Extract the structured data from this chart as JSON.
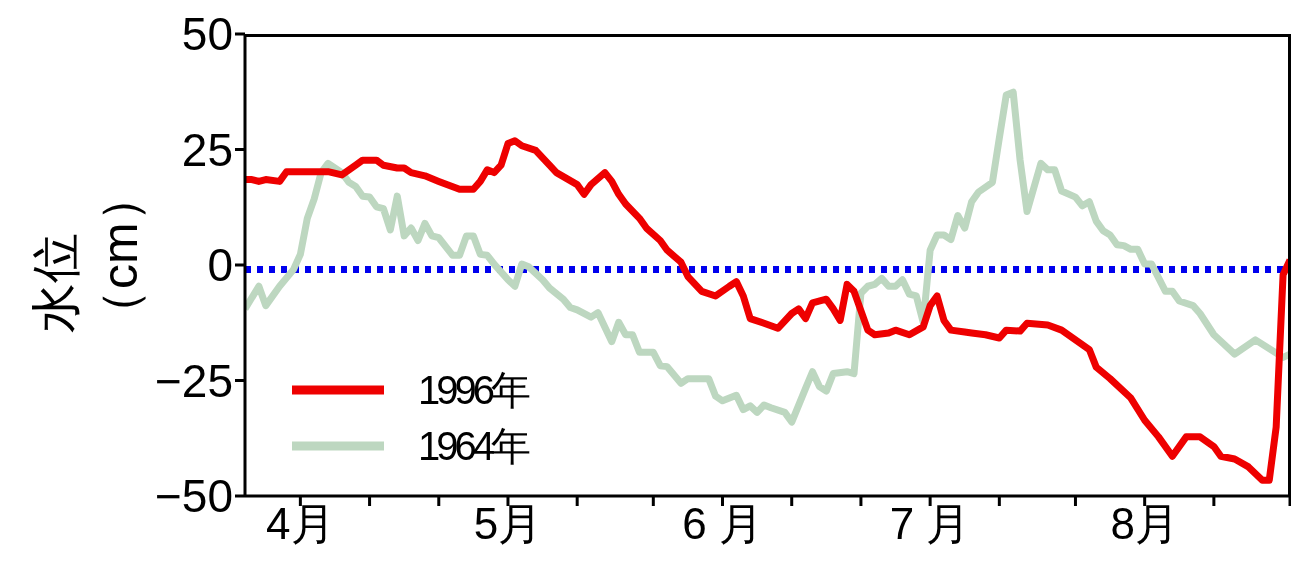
{
  "chart_data": {
    "type": "line",
    "ylabel": "水位（cm）",
    "xlim": [
      "--04-03",
      "--09-01"
    ],
    "xticks": [
      {
        "value": "--04-11",
        "label": "4月"
      },
      {
        "value": "--04-21",
        "label": null
      },
      {
        "value": "--05-01",
        "label": null
      },
      {
        "value": "--05-11",
        "label": "5月"
      },
      {
        "value": "--05-21",
        "label": null
      },
      {
        "value": "--06-01",
        "label": null
      },
      {
        "value": "--06-11",
        "label": "6 月"
      },
      {
        "value": "--06-21",
        "label": null
      },
      {
        "value": "--07-01",
        "label": null
      },
      {
        "value": "--07-11",
        "label": "7 月"
      },
      {
        "value": "--07-21",
        "label": null
      },
      {
        "value": "--08-01",
        "label": null
      },
      {
        "value": "--08-11",
        "label": "8月"
      },
      {
        "value": "--08-21",
        "label": null
      },
      {
        "value": "--09-01",
        "label": null
      }
    ],
    "ylim": [
      -50,
      50
    ],
    "yticks": [
      {
        "value": -50,
        "label": "−50"
      },
      {
        "value": -25,
        "label": "−25"
      },
      0,
      25,
      50
    ],
    "grid": false,
    "legend": "bottom left",
    "marker": "none",
    "ref_lines": [
      {
        "axis": "y",
        "value": -1,
        "color": "#0000ee",
        "line_style": "dotted"
      }
    ],
    "series": [
      {
        "name": "1996年",
        "color": "#ee0000",
        "line_style": "solid",
        "x": [
          "--04-03",
          "--04-04",
          "--04-05",
          "--04-06",
          "--04-08",
          "--04-09",
          "--04-12",
          "--04-15",
          "--04-17",
          "--04-19",
          "--04-20",
          "--04-22",
          "--04-23",
          "--04-25",
          "--04-26",
          "--04-27",
          "--04-29",
          "--05-01",
          "--05-04",
          "--05-05",
          "--05-06",
          "--05-07",
          "--05-08",
          "--05-09",
          "--05-10",
          "--05-11",
          "--05-12",
          "--05-13",
          "--05-15",
          "--05-17",
          "--05-18",
          "--05-21",
          "--05-22",
          "--05-23",
          "--05-25",
          "--05-26",
          "--05-27",
          "--05-28",
          "--05-30",
          "--05-31",
          "--06-02",
          "--06-03",
          "--06-05",
          "--06-06",
          "--06-08",
          "--06-10",
          "--06-12",
          "--06-13",
          "--06-14",
          "--06-15",
          "--06-17",
          "--06-19",
          "--06-21",
          "--06-22",
          "--06-23",
          "--06-24",
          "--06-26",
          "--06-27",
          "--06-28",
          "--06-29",
          "--06-30",
          "--07-02",
          "--07-03",
          "--07-05",
          "--07-06",
          "--07-08",
          "--07-10",
          "--07-11",
          "--07-12",
          "--07-13",
          "--07-14",
          "--07-16",
          "--07-17",
          "--07-19",
          "--07-21",
          "--07-22",
          "--07-24",
          "--07-25",
          "--07-28",
          "--07-30",
          "--08-01",
          "--08-03",
          "--08-04",
          "--08-06",
          "--08-09",
          "--08-11",
          "--08-13",
          "--08-15",
          "--08-17",
          "--08-19",
          "--08-21",
          "--08-22",
          "--08-24",
          "--08-26",
          "--08-28",
          "--08-29",
          "--08-30",
          "--08-31",
          "--09-01"
        ],
        "values": [
          18.5,
          18.5,
          18.1,
          18.5,
          18.1,
          20.2,
          20.2,
          20.2,
          19.5,
          21.6,
          22.7,
          22.7,
          21.6,
          21,
          21,
          20,
          19.3,
          18.1,
          16.4,
          16.4,
          16.4,
          18.1,
          20.6,
          20,
          21.6,
          26.3,
          26.9,
          25.8,
          24.8,
          21.6,
          20,
          17.4,
          15.3,
          17.4,
          20,
          18.1,
          15.3,
          13.2,
          10.1,
          8,
          5.3,
          3.2,
          0.6,
          -2.5,
          -5.7,
          -6.7,
          -4.6,
          -3.6,
          -6.7,
          -11.6,
          -12.6,
          -13.7,
          -10.5,
          -9.5,
          -11.6,
          -8.2,
          -7.4,
          -9.5,
          -12,
          -4.2,
          -5.7,
          -14.1,
          -15.1,
          -14.7,
          -14.1,
          -15.1,
          -13.4,
          -8.8,
          -6.7,
          -12,
          -14.1,
          -14.5,
          -14.7,
          -15.1,
          -15.8,
          -14.1,
          -14.3,
          -12.6,
          -13,
          -14.1,
          -16.2,
          -18.3,
          -22.1,
          -24.6,
          -28.8,
          -33.6,
          -37.2,
          -41.4,
          -37.2,
          -37.2,
          -39.3,
          -41.4,
          -42,
          -43.7,
          -46.6,
          -46.6,
          -35.1,
          -2.1,
          1.1
        ]
      },
      {
        "name": "1964年",
        "color": "#bdd7c0",
        "line_style": "solid",
        "x": [
          "--04-03",
          "--04-05",
          "--04-06",
          "--04-08",
          "--04-10",
          "--04-11",
          "--04-12",
          "--04-13",
          "--04-14",
          "--04-15",
          "--04-17",
          "--04-18",
          "--04-19",
          "--04-20",
          "--04-21",
          "--04-22",
          "--04-23",
          "--04-24",
          "--04-25",
          "--04-26",
          "--04-27",
          "--04-28",
          "--04-29",
          "--04-30",
          "--05-01",
          "--05-03",
          "--05-04",
          "--05-05",
          "--05-06",
          "--05-07",
          "--05-08",
          "--05-09",
          "--05-11",
          "--05-12",
          "--05-13",
          "--05-14",
          "--05-16",
          "--05-17",
          "--05-19",
          "--05-20",
          "--05-21",
          "--05-23",
          "--05-24",
          "--05-26",
          "--05-27",
          "--05-28",
          "--05-29",
          "--05-30",
          "--06-01",
          "--06-02",
          "--06-03",
          "--06-05",
          "--06-06",
          "--06-09",
          "--06-10",
          "--06-11",
          "--06-13",
          "--06-14",
          "--06-15",
          "--06-16",
          "--06-17",
          "--06-18",
          "--06-20",
          "--06-21",
          "--06-23",
          "--06-24",
          "--06-25",
          "--06-26",
          "--06-27",
          "--06-29",
          "--06-30",
          "--07-01",
          "--07-02",
          "--07-03",
          "--07-04",
          "--07-05",
          "--07-06",
          "--07-07",
          "--07-08",
          "--07-09",
          "--07-10",
          "--07-11",
          "--07-12",
          "--07-13",
          "--07-14",
          "--07-15",
          "--07-16",
          "--07-17",
          "--07-18",
          "--07-20",
          "--07-21",
          "--07-22",
          "--07-23",
          "--07-24",
          "--07-25",
          "--07-27",
          "--07-28",
          "--07-29",
          "--07-30",
          "--08-01",
          "--08-02",
          "--08-03",
          "--08-04",
          "--08-05",
          "--08-06",
          "--08-07",
          "--08-08",
          "--08-09",
          "--08-10",
          "--08-11",
          "--08-12",
          "--08-14",
          "--08-15",
          "--08-16",
          "--08-18",
          "--08-19",
          "--08-21",
          "--08-24",
          "--08-27",
          "--08-31",
          "--09-01"
        ],
        "values": [
          -9.5,
          -4.6,
          -8.8,
          -4.6,
          -1,
          2.3,
          10.1,
          14.3,
          20,
          22,
          20,
          17.9,
          17,
          14.9,
          14.7,
          12.6,
          12.2,
          7.6,
          14.9,
          6.3,
          8,
          5.3,
          9,
          6.3,
          5.9,
          2.1,
          2.1,
          6.3,
          6.3,
          2.3,
          2.1,
          0.2,
          -3.2,
          -4.6,
          0.2,
          -0.4,
          -3.2,
          -5,
          -7.4,
          -9.2,
          -9.7,
          -11.3,
          -10.3,
          -16.6,
          -12.4,
          -15.1,
          -15.1,
          -18.9,
          -18.9,
          -21.8,
          -22,
          -25.6,
          -24.6,
          -24.6,
          -28.4,
          -29.4,
          -28.2,
          -31.3,
          -30.5,
          -31.9,
          -30.3,
          -30.9,
          -31.9,
          -34,
          -26.7,
          -23.1,
          -26.3,
          -27.3,
          -23.5,
          -23.1,
          -23.5,
          -6.1,
          -4.6,
          -4.2,
          -2.9,
          -4.6,
          -4.6,
          -3.2,
          -6.3,
          -6.7,
          -12.4,
          3.2,
          6.5,
          6.5,
          5.5,
          10.7,
          8,
          13.7,
          15.8,
          17.9,
          27.5,
          36.8,
          37.4,
          22.7,
          11.6,
          22,
          20.6,
          20.6,
          16,
          14.7,
          12.8,
          13.7,
          9.5,
          7.4,
          6.5,
          4.4,
          4.2,
          3.4,
          3.4,
          0.2,
          0.2,
          -5.7,
          -5.7,
          -7.8,
          -8.8,
          -10.5,
          -15.1,
          -19.3,
          -16.2,
          -20,
          -19.3
        ]
      }
    ]
  }
}
